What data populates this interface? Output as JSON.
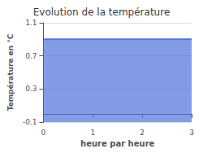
{
  "chart_data": {
    "type": "area",
    "title": "Evolution de la température",
    "xlabel": "heure par heure",
    "ylabel": "Température en °C",
    "x": [
      0,
      3
    ],
    "values": [
      0.9,
      0.9
    ],
    "xlim": [
      0,
      3
    ],
    "ylim": [
      -0.1,
      1.1
    ],
    "xticks": [
      0,
      1,
      2,
      3
    ],
    "yticks": [
      -0.1,
      0.3,
      0.7,
      1.1
    ],
    "grid": true
  }
}
